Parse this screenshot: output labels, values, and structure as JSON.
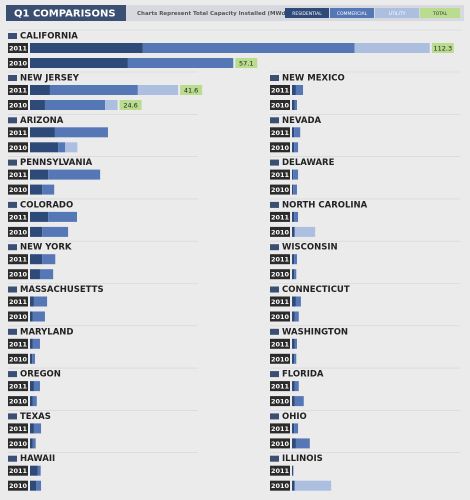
{
  "chart_data": {
    "type": "bar",
    "orientation": "horizontal",
    "stacked": true,
    "title": "Q1 COMPARISONS",
    "subtitle": "Charts Represent Total Capacity Installed (MWdc)",
    "series": [
      {
        "name": "RESIDENTIAL",
        "color": "#2e4a78"
      },
      {
        "name": "COMMERCIAL",
        "color": "#5677b6"
      },
      {
        "name": "UTILITY",
        "color": "#adbfe0"
      }
    ],
    "total": {
      "name": "TOTAL",
      "color": "#b9dc8e"
    },
    "panels": [
      {
        "title": "CALIFORNIA",
        "categories": [
          "2011",
          "2010"
        ],
        "values": [
          [
            31.7,
            59.5,
            21.1
          ],
          [
            27.5,
            29.6,
            0
          ]
        ],
        "totals": [
          112.3,
          57.1
        ]
      },
      {
        "title": "NEW JERSEY",
        "categories": [
          "2011",
          "2010"
        ],
        "values": [
          [
            5.6,
            24.7,
            11.3
          ],
          [
            4.2,
            16.9,
            3.5
          ]
        ],
        "totals": [
          41.6,
          24.6
        ]
      },
      {
        "title": "NEW MEXICO",
        "categories": [
          "2011",
          "2010"
        ],
        "values": [
          [
            1.1,
            2.0,
            0
          ],
          [
            0.8,
            0.6,
            0
          ]
        ],
        "totals": [
          null,
          null
        ]
      },
      {
        "title": "ARIZONA",
        "categories": [
          "2011",
          "2010"
        ],
        "values": [
          [
            7.0,
            14.9,
            0
          ],
          [
            7.9,
            2.0,
            3.4
          ]
        ],
        "totals": [
          null,
          null
        ]
      },
      {
        "title": "NEVADA",
        "categories": [
          "2011",
          "2010"
        ],
        "values": [
          [
            0.6,
            1.7,
            0
          ],
          [
            0.6,
            1.1,
            0
          ]
        ],
        "totals": [
          null,
          null
        ]
      },
      {
        "title": "PENNSYLVANIA",
        "categories": [
          "2011",
          "2010"
        ],
        "values": [
          [
            5.1,
            14.6,
            0
          ],
          [
            3.4,
            3.4,
            0
          ]
        ],
        "totals": [
          null,
          null
        ]
      },
      {
        "title": "DELAWARE",
        "categories": [
          "2011",
          "2010"
        ],
        "values": [
          [
            0.3,
            1.4,
            0
          ],
          [
            0.3,
            1.1,
            0
          ]
        ],
        "totals": [
          null,
          null
        ]
      },
      {
        "title": "COLORADO",
        "categories": [
          "2011",
          "2010"
        ],
        "values": [
          [
            5.1,
            8.1,
            0
          ],
          [
            3.4,
            7.3,
            0
          ]
        ],
        "totals": [
          null,
          null
        ]
      },
      {
        "title": "NORTH CAROLINA",
        "categories": [
          "2011",
          "2010"
        ],
        "values": [
          [
            0.6,
            1.1,
            0
          ],
          [
            0.6,
            0.3,
            5.6
          ]
        ],
        "totals": [
          null,
          null
        ]
      },
      {
        "title": "NEW YORK",
        "categories": [
          "2011",
          "2010"
        ],
        "values": [
          [
            3.4,
            3.7,
            0
          ],
          [
            2.8,
            3.7,
            0
          ]
        ],
        "totals": [
          null,
          null
        ]
      },
      {
        "title": "WISCONSIN",
        "categories": [
          "2011",
          "2010"
        ],
        "values": [
          [
            0.6,
            0.8,
            0
          ],
          [
            0.6,
            0.6,
            0
          ]
        ],
        "totals": [
          null,
          null
        ]
      },
      {
        "title": "MASSACHUSETTS",
        "categories": [
          "2011",
          "2010"
        ],
        "values": [
          [
            1.1,
            3.7,
            0
          ],
          [
            0.8,
            3.4,
            0
          ]
        ],
        "totals": [
          null,
          null
        ]
      },
      {
        "title": "CONNECTICUT",
        "categories": [
          "2011",
          "2010"
        ],
        "values": [
          [
            1.1,
            1.4,
            0
          ],
          [
            0.8,
            1.1,
            0
          ]
        ],
        "totals": [
          null,
          null
        ]
      },
      {
        "title": "MARYLAND",
        "categories": [
          "2011",
          "2010"
        ],
        "values": [
          [
            0.8,
            2.0,
            0
          ],
          [
            0.6,
            0.8,
            0
          ]
        ],
        "totals": [
          null,
          null
        ]
      },
      {
        "title": "WASHINGTON",
        "categories": [
          "2011",
          "2010"
        ],
        "values": [
          [
            0.8,
            0.6,
            0
          ],
          [
            0.6,
            0.6,
            0
          ]
        ],
        "totals": [
          null,
          null
        ]
      },
      {
        "title": "OREGON",
        "categories": [
          "2011",
          "2010"
        ],
        "values": [
          [
            1.1,
            1.7,
            0
          ],
          [
            0.8,
            1.1,
            0
          ]
        ],
        "totals": [
          null,
          null
        ]
      },
      {
        "title": "FLORIDA",
        "categories": [
          "2011",
          "2010"
        ],
        "values": [
          [
            0.8,
            1.1,
            0
          ],
          [
            0.8,
            2.5,
            0
          ]
        ],
        "totals": [
          null,
          null
        ]
      },
      {
        "title": "TEXAS",
        "categories": [
          "2011",
          "2010"
        ],
        "values": [
          [
            1.1,
            2.0,
            0
          ],
          [
            0.8,
            0.8,
            0
          ]
        ],
        "totals": [
          null,
          null
        ]
      },
      {
        "title": "OHIO",
        "categories": [
          "2011",
          "2010"
        ],
        "values": [
          [
            0.6,
            1.1,
            0
          ],
          [
            1.1,
            3.9,
            0
          ]
        ],
        "totals": [
          null,
          null
        ]
      },
      {
        "title": "HAWAII",
        "categories": [
          "2011",
          "2010"
        ],
        "values": [
          [
            2.2,
            0.8,
            0
          ],
          [
            1.7,
            1.4,
            0
          ]
        ],
        "totals": [
          null,
          null
        ]
      },
      {
        "title": "ILLINOIS",
        "categories": [
          "2011",
          "2010"
        ],
        "values": [
          [
            0.3,
            0.1,
            0
          ],
          [
            0.6,
            0.3,
            10.1
          ]
        ],
        "totals": [
          null,
          null
        ]
      }
    ]
  }
}
